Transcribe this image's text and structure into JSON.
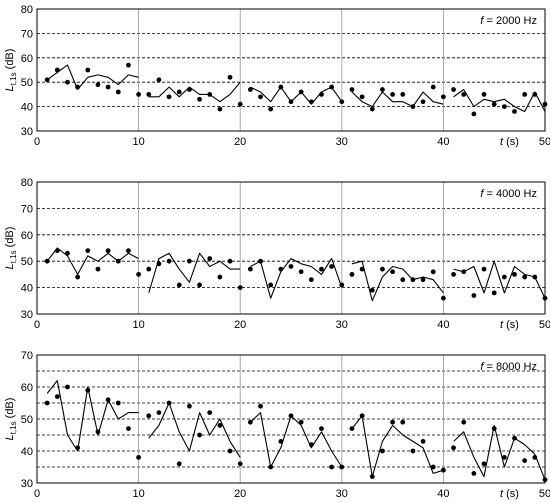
{
  "chart_data": [
    {
      "type": "line",
      "freq_label": "f = 2000 Hz",
      "ylabel": "L_t,1s (dB)",
      "xlabel": "t (s)",
      "xlim": [
        0,
        50
      ],
      "ylim": [
        30,
        80
      ],
      "yticks": [
        30,
        40,
        50,
        60,
        70,
        80
      ],
      "xticks": [
        0,
        10,
        20,
        30,
        40,
        50
      ],
      "grid": "dashed horizontal at 40, 50, 60, 70; solid vertical at 10, 20, 30, 40",
      "legend": "none",
      "series": [
        {
          "style": "markers",
          "x": [
            1,
            2,
            3,
            4,
            5,
            6,
            7,
            8,
            9,
            10,
            11,
            12,
            13,
            14,
            15,
            16,
            17,
            18,
            19,
            20,
            21,
            22,
            23,
            24,
            25,
            26,
            27,
            28,
            29,
            30,
            31,
            32,
            33,
            34,
            35,
            36,
            37,
            38,
            39,
            40,
            41,
            42,
            43,
            44,
            45,
            46,
            47,
            48,
            49,
            50
          ],
          "y": [
            51,
            55,
            50,
            48,
            55,
            49,
            48,
            46,
            57,
            45,
            45,
            51,
            44,
            46,
            47,
            43,
            45,
            39,
            52,
            41,
            47,
            44,
            39,
            48,
            42,
            46,
            42,
            45,
            48,
            42,
            47,
            44,
            39,
            47,
            45,
            45,
            40,
            42,
            48,
            44,
            47,
            45,
            37,
            45,
            41,
            40,
            38,
            45,
            45,
            41
          ]
        },
        {
          "style": "line",
          "segments": [
            {
              "x": [
                1,
                2,
                3,
                4,
                5,
                6,
                7,
                8,
                9,
                10
              ],
              "y": [
                51,
                54,
                57,
                47,
                52,
                53,
                52,
                49,
                53,
                52
              ]
            },
            {
              "x": [
                11,
                12,
                13,
                14,
                15,
                16,
                17,
                18,
                19,
                20
              ],
              "y": [
                44,
                44,
                48,
                44,
                48,
                45,
                45,
                42,
                45,
                50
              ]
            },
            {
              "x": [
                21,
                22,
                23,
                24,
                25,
                26,
                27,
                28,
                29,
                30
              ],
              "y": [
                48,
                46,
                42,
                48,
                42,
                46,
                41,
                46,
                48,
                42
              ]
            },
            {
              "x": [
                31,
                32,
                33,
                34,
                35,
                36,
                37,
                38,
                39,
                40
              ],
              "y": [
                46,
                42,
                40,
                46,
                42,
                42,
                40,
                46,
                42,
                41
              ]
            },
            {
              "x": [
                41,
                42,
                43,
                44,
                45,
                46,
                47,
                48,
                49,
                50
              ],
              "y": [
                44,
                47,
                40,
                43,
                42,
                43,
                40,
                38,
                46,
                38
              ]
            }
          ]
        }
      ]
    },
    {
      "type": "line",
      "freq_label": "f = 4000 Hz",
      "ylabel": "L_t,1s (dB)",
      "xlabel": "t (s)",
      "xlim": [
        0,
        50
      ],
      "ylim": [
        30,
        80
      ],
      "yticks": [
        30,
        40,
        50,
        60,
        70,
        80
      ],
      "xticks": [
        0,
        10,
        20,
        30,
        40,
        50
      ],
      "grid": "dashed horizontal at 40, 50, 60, 70; solid vertical at 10, 20, 30, 40",
      "legend": "none",
      "series": [
        {
          "style": "markers",
          "x": [
            1,
            2,
            3,
            4,
            5,
            6,
            7,
            8,
            9,
            10,
            11,
            12,
            13,
            14,
            15,
            16,
            17,
            18,
            19,
            20,
            21,
            22,
            23,
            24,
            25,
            26,
            27,
            28,
            29,
            30,
            31,
            32,
            33,
            34,
            35,
            36,
            37,
            38,
            39,
            40,
            41,
            42,
            43,
            44,
            45,
            46,
            47,
            48,
            49,
            50
          ],
          "y": [
            50,
            54,
            53,
            44,
            54,
            47,
            54,
            50,
            54,
            45,
            47,
            49,
            50,
            41,
            50,
            41,
            51,
            44,
            50,
            40,
            47,
            50,
            41,
            47,
            48,
            46,
            43,
            47,
            48,
            41,
            45,
            47,
            39,
            47,
            46,
            43,
            43,
            43,
            46,
            36,
            45,
            46,
            37,
            47,
            38,
            44,
            45,
            44,
            44,
            36
          ]
        },
        {
          "style": "line",
          "segments": [
            {
              "x": [
                1,
                2,
                3,
                4,
                5,
                6,
                7,
                8,
                9,
                10
              ],
              "y": [
                50,
                55,
                52,
                45,
                52,
                50,
                53,
                50,
                53,
                51
              ]
            },
            {
              "x": [
                11,
                12,
                13,
                14,
                15,
                16,
                17,
                18,
                19,
                20
              ],
              "y": [
                38,
                51,
                53,
                47,
                42,
                53,
                48,
                50,
                47,
                47
              ]
            },
            {
              "x": [
                21,
                22,
                23,
                24,
                25,
                26,
                27,
                28,
                29,
                30
              ],
              "y": [
                48,
                50,
                36,
                46,
                51,
                49,
                48,
                45,
                51,
                40
              ]
            },
            {
              "x": [
                31,
                32,
                33,
                34,
                35,
                36,
                37,
                38,
                39,
                40
              ],
              "y": [
                49,
                50,
                35,
                44,
                48,
                47,
                43,
                44,
                43,
                38
              ]
            },
            {
              "x": [
                41,
                42,
                43,
                44,
                45,
                46,
                47,
                48,
                49,
                50
              ],
              "y": [
                47,
                46,
                48,
                38,
                50,
                38,
                48,
                45,
                44,
                36
              ]
            }
          ]
        }
      ]
    },
    {
      "type": "line",
      "freq_label": "f = 8000 Hz",
      "ylabel": "L_t,1s (dB)",
      "xlabel": "t (s)",
      "xlim": [
        0,
        50
      ],
      "ylim": [
        30,
        70
      ],
      "yticks": [
        30,
        40,
        50,
        60,
        70
      ],
      "xticks": [
        0,
        10,
        20,
        30,
        40,
        50
      ],
      "grid": "dashed horizontal at 35, 40, 45, 50, 55, 60, 65; solid vertical at 10, 20, 30, 40",
      "legend": "none",
      "series": [
        {
          "style": "markers",
          "x": [
            1,
            2,
            3,
            4,
            5,
            6,
            7,
            8,
            9,
            10,
            11,
            12,
            13,
            14,
            15,
            16,
            17,
            18,
            19,
            20,
            21,
            22,
            23,
            24,
            25,
            26,
            27,
            28,
            29,
            30,
            31,
            32,
            33,
            34,
            35,
            36,
            37,
            38,
            39,
            40,
            41,
            42,
            43,
            44,
            45,
            46,
            47,
            48,
            49,
            50
          ],
          "y": [
            55,
            57,
            60,
            41,
            59,
            46,
            56,
            55,
            47,
            38,
            51,
            52,
            55,
            36,
            54,
            45,
            52,
            48,
            40,
            36,
            49,
            54,
            35,
            43,
            51,
            49,
            42,
            47,
            35,
            35,
            47,
            51,
            32,
            40,
            49,
            49,
            40,
            43,
            35,
            34,
            41,
            49,
            33,
            36,
            47,
            38,
            44,
            37,
            38,
            31
          ]
        },
        {
          "style": "line",
          "segments": [
            {
              "x": [
                1,
                2,
                3,
                4,
                5,
                6,
                7,
                8,
                9,
                10
              ],
              "y": [
                58,
                62,
                45,
                40,
                60,
                45,
                56,
                50,
                52,
                52
              ]
            },
            {
              "x": [
                11,
                12,
                13,
                14,
                15,
                16,
                17,
                18,
                19,
                20
              ],
              "y": [
                44,
                48,
                55,
                46,
                40,
                52,
                45,
                50,
                43,
                38
              ]
            },
            {
              "x": [
                21,
                22,
                23,
                24,
                25,
                26,
                27,
                28,
                29,
                30
              ],
              "y": [
                49,
                52,
                35,
                41,
                51,
                48,
                41,
                46,
                40,
                35
              ]
            },
            {
              "x": [
                31,
                32,
                33,
                34,
                35,
                36,
                37,
                38,
                39,
                40
              ],
              "y": [
                47,
                51,
                32,
                43,
                48,
                45,
                43,
                41,
                33,
                34
              ]
            },
            {
              "x": [
                41,
                42,
                43,
                44,
                45,
                46,
                47,
                48,
                49,
                50
              ],
              "y": [
                43,
                46,
                38,
                32,
                48,
                35,
                44,
                42,
                39,
                31
              ]
            }
          ]
        }
      ]
    }
  ]
}
